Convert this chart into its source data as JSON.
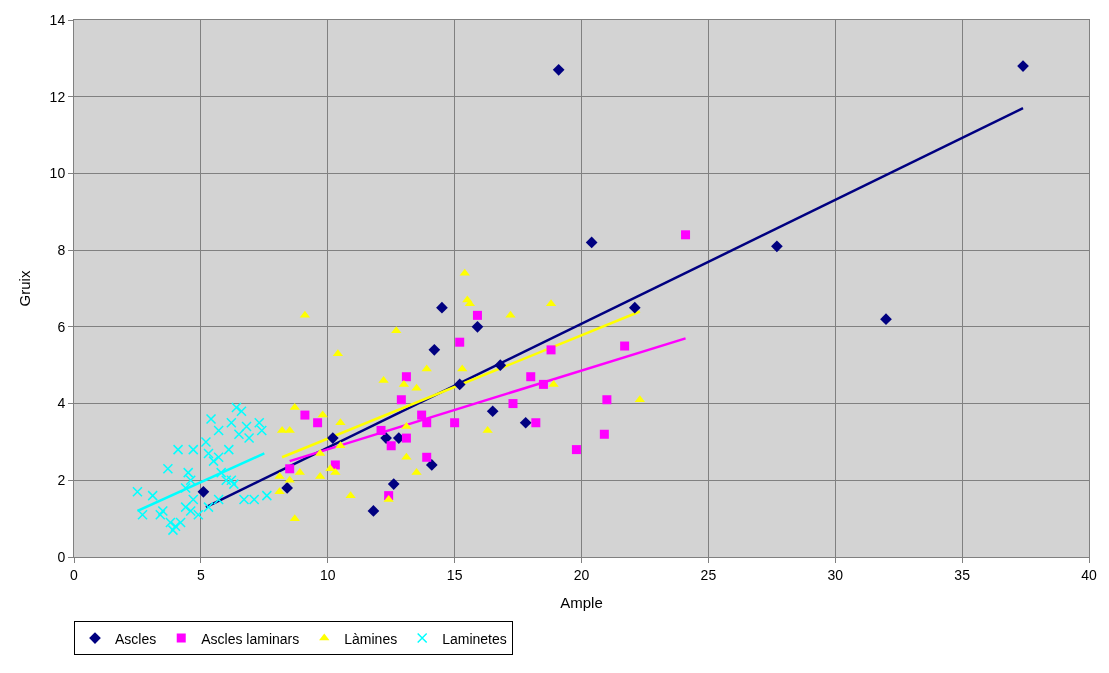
{
  "chart_data": {
    "type": "scatter",
    "xlabel": "Ample",
    "ylabel": "Gruix",
    "xlim": [
      0,
      40
    ],
    "xticks": [
      0,
      5,
      10,
      15,
      20,
      25,
      30,
      35,
      40
    ],
    "ylim": [
      0,
      14
    ],
    "yticks": [
      0,
      2,
      4,
      6,
      8,
      10,
      12,
      14
    ],
    "grid": true,
    "legend": "bottom left",
    "series": [
      {
        "name": "Ascles",
        "color": "#000080",
        "marker": "diamond",
        "x": [
          5.1,
          8.4,
          10.2,
          11.8,
          12.3,
          12.8,
          12.6,
          14.1,
          14.2,
          14.5,
          15.9,
          15.2,
          16.8,
          16.5,
          17.8,
          19.1,
          20.4,
          22.1,
          27.7,
          32.0,
          37.4
        ],
        "values": [
          1.7,
          1.8,
          3.1,
          1.2,
          3.1,
          3.1,
          1.9,
          2.4,
          5.4,
          6.5,
          6.0,
          4.5,
          5.0,
          3.8,
          3.5,
          12.7,
          8.2,
          6.5,
          8.1,
          6.2,
          12.8
        ]
      },
      {
        "name": "Ascles laminars",
        "color": "#ff00ff",
        "marker": "square",
        "x": [
          8.5,
          9.1,
          9.6,
          10.3,
          12.1,
          12.5,
          12.4,
          13.1,
          12.9,
          13.1,
          13.7,
          13.9,
          13.9,
          15.0,
          15.2,
          15.9,
          18.8,
          18.0,
          18.5,
          17.3,
          18.2,
          19.8,
          20.9,
          21.0,
          21.7,
          24.1
        ],
        "values": [
          2.3,
          3.7,
          3.5,
          2.4,
          3.3,
          2.9,
          1.6,
          4.7,
          4.1,
          3.1,
          3.7,
          3.5,
          2.6,
          3.5,
          5.6,
          6.3,
          5.4,
          4.7,
          4.5,
          4.0,
          3.5,
          2.8,
          3.2,
          4.1,
          5.5,
          8.4
        ]
      },
      {
        "name": "Làmines",
        "color": "#ffff00",
        "marker": "triangle",
        "x": [
          15.4,
          15.6,
          15.5,
          9.1,
          12.7,
          10.4,
          13.9,
          12.2,
          13.0,
          13.5,
          15.3,
          8.7,
          8.2,
          8.5,
          9.8,
          10.5,
          10.5,
          9.7,
          13.1,
          13.1,
          8.1,
          8.5,
          8.9,
          9.7,
          10.1,
          10.3,
          13.5,
          8.1,
          10.9,
          12.4,
          8.7,
          18.8,
          17.2,
          18.9,
          22.3,
          16.3
        ],
        "values": [
          7.4,
          6.6,
          6.7,
          6.3,
          5.9,
          5.3,
          4.9,
          4.6,
          4.5,
          4.4,
          4.9,
          3.9,
          3.3,
          3.3,
          3.7,
          3.5,
          2.9,
          2.7,
          3.4,
          2.6,
          2.1,
          2.0,
          2.2,
          2.1,
          2.3,
          2.2,
          2.2,
          1.7,
          1.6,
          1.5,
          1.0,
          6.6,
          6.3,
          4.5,
          4.1,
          3.3
        ]
      },
      {
        "name": "Laminetes",
        "color": "#00ffff",
        "marker": "cross",
        "x": [
          2.5,
          2.7,
          3.1,
          3.4,
          3.5,
          3.8,
          3.9,
          4.0,
          3.7,
          4.1,
          4.2,
          4.4,
          4.4,
          4.5,
          4.6,
          4.7,
          4.7,
          4.6,
          5.2,
          5.3,
          5.4,
          5.5,
          5.3,
          5.7,
          5.7,
          5.8,
          6.0,
          6.1,
          6.2,
          6.2,
          6.4,
          6.5,
          6.6,
          6.8,
          6.9,
          6.3,
          6.7,
          7.1,
          7.3,
          7.4,
          7.6,
          4.9,
          5.7
        ],
        "values": [
          1.7,
          1.1,
          1.6,
          1.1,
          1.2,
          0.9,
          0.7,
          0.8,
          2.3,
          2.8,
          0.9,
          1.3,
          1.8,
          2.2,
          2.0,
          2.8,
          1.5,
          1.2,
          3.0,
          2.7,
          3.6,
          2.5,
          1.3,
          3.3,
          2.6,
          2.2,
          2.0,
          2.8,
          3.5,
          2.0,
          3.9,
          3.2,
          3.8,
          3.4,
          3.1,
          1.9,
          1.5,
          1.5,
          3.5,
          3.3,
          1.6,
          1.1,
          1.5
        ]
      },
      {
        "type": "line",
        "color": "#000080",
        "x": [
          5.2,
          37.4
        ],
        "values": [
          1.3,
          11.7
        ]
      },
      {
        "type": "line",
        "color": "#ff00ff",
        "x": [
          8.5,
          24.1
        ],
        "values": [
          2.5,
          5.7
        ]
      },
      {
        "type": "line",
        "color": "#ffff00",
        "x": [
          8.2,
          22.3
        ],
        "values": [
          2.6,
          6.4
        ]
      },
      {
        "type": "line",
        "color": "#00ffff",
        "x": [
          2.5,
          7.5
        ],
        "values": [
          1.2,
          2.7
        ]
      }
    ]
  }
}
